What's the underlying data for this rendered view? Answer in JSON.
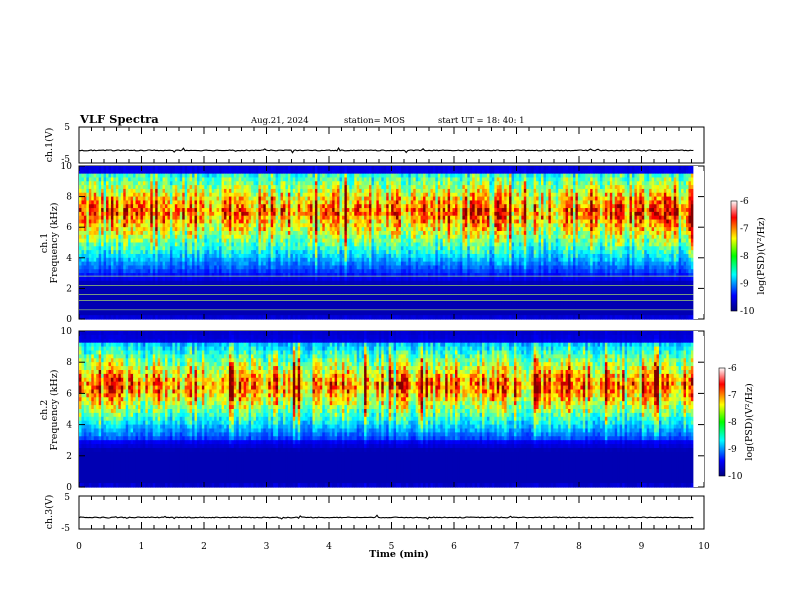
{
  "header": {
    "title": "VLF Spectra",
    "date": "Aug.21, 2024",
    "station": "station= MOS",
    "start_ut": "start  UT =   18: 40: 1"
  },
  "chart_data": [
    {
      "type": "line",
      "panel": "ch1-voltage",
      "ylabel": "ch.1(V)",
      "ylim": [
        -5,
        5
      ],
      "y_ticks": [
        "5",
        "-5"
      ],
      "series": [
        {
          "name": "",
          "baseline": -1.5
        }
      ]
    },
    {
      "type": "heatmap",
      "panel": "ch1-spectrogram",
      "ylabel": "ch.1\nFrequency (kHz)",
      "ylim": [
        0,
        10
      ],
      "y_ticks": [
        "10",
        "8",
        "6",
        "4",
        "2",
        "0"
      ],
      "x_range_min": [
        0,
        9.83
      ],
      "colorbar": {
        "label": "log(PSD)(V²/Hz)",
        "range": [
          -10,
          -6
        ],
        "ticks": [
          "-6",
          "-7",
          "-8",
          "-9",
          "-10"
        ],
        "scale": "jet"
      },
      "features": {
        "peak_band_khz": [
          5,
          9
        ],
        "interference_lines_khz": [
          0.6,
          1.2,
          1.6,
          2.2,
          2.8
        ]
      }
    },
    {
      "type": "heatmap",
      "panel": "ch2-spectrogram",
      "ylabel": "ch.2\nFrequency (kHz)",
      "ylim": [
        0,
        10
      ],
      "y_ticks": [
        "10",
        "8",
        "6",
        "4",
        "2",
        "0"
      ],
      "x_range_min": [
        0,
        9.83
      ],
      "colorbar": {
        "label": "log(PSD)(V²/Hz)",
        "range": [
          -10,
          -6
        ],
        "ticks": [
          "-6",
          "-7",
          "-8",
          "-9",
          "-10"
        ],
        "scale": "jet"
      },
      "features": {
        "peak_band_khz": [
          5,
          8
        ]
      }
    },
    {
      "type": "line",
      "panel": "ch3-voltage",
      "ylabel": "ch.3(V)",
      "ylim": [
        -5,
        5
      ],
      "y_ticks": [
        "5",
        "-5"
      ],
      "series": [
        {
          "name": "",
          "baseline": -1.5
        }
      ]
    }
  ],
  "x_axis": {
    "label": "Time  (min)",
    "range": [
      0,
      10
    ],
    "ticks": [
      "0",
      "1",
      "2",
      "3",
      "4",
      "5",
      "6",
      "7",
      "8",
      "9",
      "10"
    ]
  }
}
